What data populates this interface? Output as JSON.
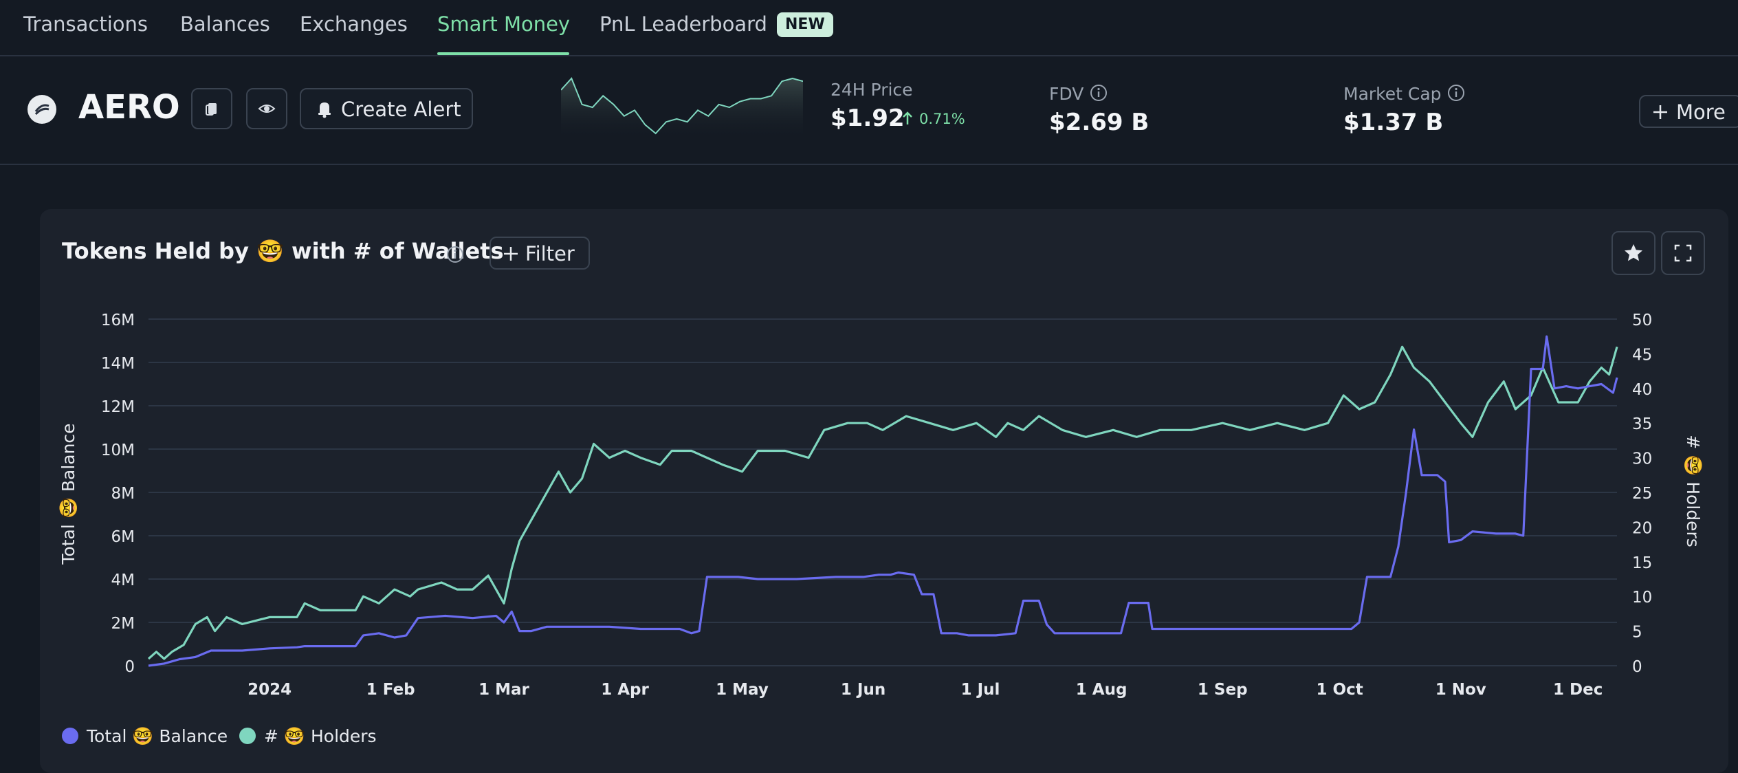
{
  "nav": {
    "tabs": [
      "Transactions",
      "Balances",
      "Exchanges",
      "Smart Money",
      "PnL Leaderboard"
    ],
    "active_tab": "Smart Money",
    "new_badge": "NEW",
    "active_color": "#7ee0a8"
  },
  "token": {
    "symbol": "AERO",
    "create_alert_label": "Create Alert",
    "price_label": "24H Price",
    "price": "$1.92",
    "price_change": "0.71%",
    "fdv_label": "FDV",
    "fdv": "$2.69 B",
    "mcap_label": "Market Cap",
    "mcap": "$1.37 B",
    "more_label": "More",
    "icons": [
      "copy-icon",
      "watch-eye-icon",
      "bell-icon",
      "info-icon",
      "plus-icon"
    ]
  },
  "panel": {
    "title": "Tokens Held by 🤓 with # of Wallets",
    "filter_label": "Filter",
    "icons": [
      "star-icon",
      "fullscreen-icon"
    ]
  },
  "chart_data": {
    "type": "line",
    "x_ticks": [
      "2024",
      "1 Feb",
      "1 Mar",
      "1 Apr",
      "1 May",
      "1 Jun",
      "1 Jul",
      "1 Aug",
      "1 Sep",
      "1 Oct",
      "1 Nov",
      "1 Dec"
    ],
    "y_left_label": "Total 🤓 Balance",
    "y_left_ticks": [
      "0",
      "2M",
      "4M",
      "6M",
      "8M",
      "10M",
      "12M",
      "14M",
      "16M"
    ],
    "y_left_range": [
      0,
      16000000
    ],
    "y_right_label": "# 🤓 Holders",
    "y_right_ticks": [
      "0",
      "5",
      "10",
      "15",
      "20",
      "25",
      "30",
      "35",
      "40",
      "45",
      "50"
    ],
    "y_right_range": [
      0,
      50
    ],
    "grid": true,
    "legend_position": "bottom-left",
    "series": [
      {
        "name": "Total 🤓 Balance",
        "axis": "left",
        "color": "#6a6cf0",
        "points": [
          [
            "2023-12-01",
            0
          ],
          [
            "2023-12-05",
            100000
          ],
          [
            "2023-12-09",
            300000
          ],
          [
            "2023-12-13",
            400000
          ],
          [
            "2023-12-17",
            700000
          ],
          [
            "2023-12-25",
            700000
          ],
          [
            "2024-01-01",
            800000
          ],
          [
            "2024-01-08",
            850000
          ],
          [
            "2024-01-10",
            900000
          ],
          [
            "2024-01-16",
            900000
          ],
          [
            "2024-01-23",
            900000
          ],
          [
            "2024-01-25",
            1400000
          ],
          [
            "2024-01-29",
            1500000
          ],
          [
            "2024-02-02",
            1300000
          ],
          [
            "2024-02-05",
            1400000
          ],
          [
            "2024-02-08",
            2200000
          ],
          [
            "2024-02-15",
            2300000
          ],
          [
            "2024-02-22",
            2200000
          ],
          [
            "2024-02-28",
            2300000
          ],
          [
            "2024-03-01",
            2000000
          ],
          [
            "2024-03-03",
            2500000
          ],
          [
            "2024-03-05",
            1600000
          ],
          [
            "2024-03-08",
            1600000
          ],
          [
            "2024-03-12",
            1800000
          ],
          [
            "2024-03-20",
            1800000
          ],
          [
            "2024-03-28",
            1800000
          ],
          [
            "2024-04-05",
            1700000
          ],
          [
            "2024-04-15",
            1700000
          ],
          [
            "2024-04-18",
            1500000
          ],
          [
            "2024-04-20",
            1600000
          ],
          [
            "2024-04-22",
            4100000
          ],
          [
            "2024-04-30",
            4100000
          ],
          [
            "2024-05-05",
            4000000
          ],
          [
            "2024-05-15",
            4000000
          ],
          [
            "2024-05-25",
            4100000
          ],
          [
            "2024-06-01",
            4100000
          ],
          [
            "2024-06-05",
            4200000
          ],
          [
            "2024-06-08",
            4200000
          ],
          [
            "2024-06-10",
            4300000
          ],
          [
            "2024-06-14",
            4200000
          ],
          [
            "2024-06-16",
            3300000
          ],
          [
            "2024-06-19",
            3300000
          ],
          [
            "2024-06-21",
            1500000
          ],
          [
            "2024-06-25",
            1500000
          ],
          [
            "2024-06-28",
            1400000
          ],
          [
            "2024-07-05",
            1400000
          ],
          [
            "2024-07-10",
            1500000
          ],
          [
            "2024-07-12",
            3000000
          ],
          [
            "2024-07-16",
            3000000
          ],
          [
            "2024-07-18",
            1900000
          ],
          [
            "2024-07-20",
            1500000
          ],
          [
            "2024-07-30",
            1500000
          ],
          [
            "2024-08-06",
            1500000
          ],
          [
            "2024-08-08",
            2900000
          ],
          [
            "2024-08-13",
            2900000
          ],
          [
            "2024-08-14",
            1700000
          ],
          [
            "2024-08-22",
            1700000
          ],
          [
            "2024-09-01",
            1700000
          ],
          [
            "2024-09-15",
            1700000
          ],
          [
            "2024-09-30",
            1700000
          ],
          [
            "2024-10-04",
            1700000
          ],
          [
            "2024-10-06",
            2000000
          ],
          [
            "2024-10-08",
            4100000
          ],
          [
            "2024-10-14",
            4100000
          ],
          [
            "2024-10-16",
            5500000
          ],
          [
            "2024-10-18",
            8000000
          ],
          [
            "2024-10-20",
            10900000
          ],
          [
            "2024-10-22",
            8800000
          ],
          [
            "2024-10-26",
            8800000
          ],
          [
            "2024-10-28",
            8500000
          ],
          [
            "2024-10-29",
            5700000
          ],
          [
            "2024-11-01",
            5800000
          ],
          [
            "2024-11-04",
            6200000
          ],
          [
            "2024-11-10",
            6100000
          ],
          [
            "2024-11-15",
            6100000
          ],
          [
            "2024-11-17",
            6000000
          ],
          [
            "2024-11-19",
            13700000
          ],
          [
            "2024-11-22",
            13700000
          ],
          [
            "2024-11-23",
            15200000
          ],
          [
            "2024-11-25",
            12800000
          ],
          [
            "2024-11-28",
            12900000
          ],
          [
            "2024-12-01",
            12800000
          ],
          [
            "2024-12-04",
            12900000
          ],
          [
            "2024-12-07",
            13000000
          ],
          [
            "2024-12-10",
            12600000
          ],
          [
            "2024-12-11",
            13300000
          ]
        ]
      },
      {
        "name": "# 🤓 Holders",
        "axis": "right",
        "color": "#7fd6bf",
        "points": [
          [
            "2023-12-01",
            1
          ],
          [
            "2023-12-03",
            2
          ],
          [
            "2023-12-05",
            1
          ],
          [
            "2023-12-07",
            2
          ],
          [
            "2023-12-10",
            3
          ],
          [
            "2023-12-13",
            6
          ],
          [
            "2023-12-16",
            7
          ],
          [
            "2023-12-18",
            5
          ],
          [
            "2023-12-21",
            7
          ],
          [
            "2023-12-25",
            6
          ],
          [
            "2024-01-01",
            7
          ],
          [
            "2024-01-08",
            7
          ],
          [
            "2024-01-10",
            9
          ],
          [
            "2024-01-14",
            8
          ],
          [
            "2024-01-23",
            8
          ],
          [
            "2024-01-25",
            10
          ],
          [
            "2024-01-29",
            9
          ],
          [
            "2024-02-02",
            11
          ],
          [
            "2024-02-06",
            10
          ],
          [
            "2024-02-08",
            11
          ],
          [
            "2024-02-14",
            12
          ],
          [
            "2024-02-18",
            11
          ],
          [
            "2024-02-22",
            11
          ],
          [
            "2024-02-26",
            13
          ],
          [
            "2024-03-01",
            9
          ],
          [
            "2024-03-03",
            14
          ],
          [
            "2024-03-05",
            18
          ],
          [
            "2024-03-08",
            21
          ],
          [
            "2024-03-12",
            25
          ],
          [
            "2024-03-15",
            28
          ],
          [
            "2024-03-18",
            25
          ],
          [
            "2024-03-21",
            27
          ],
          [
            "2024-03-24",
            32
          ],
          [
            "2024-03-28",
            30
          ],
          [
            "2024-04-01",
            31
          ],
          [
            "2024-04-05",
            30
          ],
          [
            "2024-04-10",
            29
          ],
          [
            "2024-04-13",
            31
          ],
          [
            "2024-04-18",
            31
          ],
          [
            "2024-04-22",
            30
          ],
          [
            "2024-04-26",
            29
          ],
          [
            "2024-05-01",
            28
          ],
          [
            "2024-05-05",
            31
          ],
          [
            "2024-05-12",
            31
          ],
          [
            "2024-05-18",
            30
          ],
          [
            "2024-05-22",
            34
          ],
          [
            "2024-05-28",
            35
          ],
          [
            "2024-06-02",
            35
          ],
          [
            "2024-06-06",
            34
          ],
          [
            "2024-06-12",
            36
          ],
          [
            "2024-06-18",
            35
          ],
          [
            "2024-06-24",
            34
          ],
          [
            "2024-06-30",
            35
          ],
          [
            "2024-07-05",
            33
          ],
          [
            "2024-07-08",
            35
          ],
          [
            "2024-07-12",
            34
          ],
          [
            "2024-07-16",
            36
          ],
          [
            "2024-07-22",
            34
          ],
          [
            "2024-07-28",
            33
          ],
          [
            "2024-08-04",
            34
          ],
          [
            "2024-08-10",
            33
          ],
          [
            "2024-08-16",
            34
          ],
          [
            "2024-08-24",
            34
          ],
          [
            "2024-09-01",
            35
          ],
          [
            "2024-09-08",
            34
          ],
          [
            "2024-09-15",
            35
          ],
          [
            "2024-09-22",
            34
          ],
          [
            "2024-09-28",
            35
          ],
          [
            "2024-10-02",
            39
          ],
          [
            "2024-10-06",
            37
          ],
          [
            "2024-10-10",
            38
          ],
          [
            "2024-10-14",
            42
          ],
          [
            "2024-10-17",
            46
          ],
          [
            "2024-10-20",
            43
          ],
          [
            "2024-10-24",
            41
          ],
          [
            "2024-10-28",
            38
          ],
          [
            "2024-11-01",
            35
          ],
          [
            "2024-11-04",
            33
          ],
          [
            "2024-11-08",
            38
          ],
          [
            "2024-11-12",
            41
          ],
          [
            "2024-11-15",
            37
          ],
          [
            "2024-11-19",
            39
          ],
          [
            "2024-11-22",
            43
          ],
          [
            "2024-11-26",
            38
          ],
          [
            "2024-12-01",
            38
          ],
          [
            "2024-12-04",
            41
          ],
          [
            "2024-12-07",
            43
          ],
          [
            "2024-12-09",
            42
          ],
          [
            "2024-12-11",
            46
          ]
        ]
      }
    ]
  },
  "spark_data": {
    "color": "#7fd6bf",
    "values": [
      1.95,
      1.99,
      1.9,
      1.89,
      1.93,
      1.9,
      1.86,
      1.88,
      1.83,
      1.8,
      1.84,
      1.85,
      1.84,
      1.88,
      1.86,
      1.9,
      1.89,
      1.91,
      1.92,
      1.92,
      1.93,
      1.98,
      1.99,
      1.98
    ]
  }
}
